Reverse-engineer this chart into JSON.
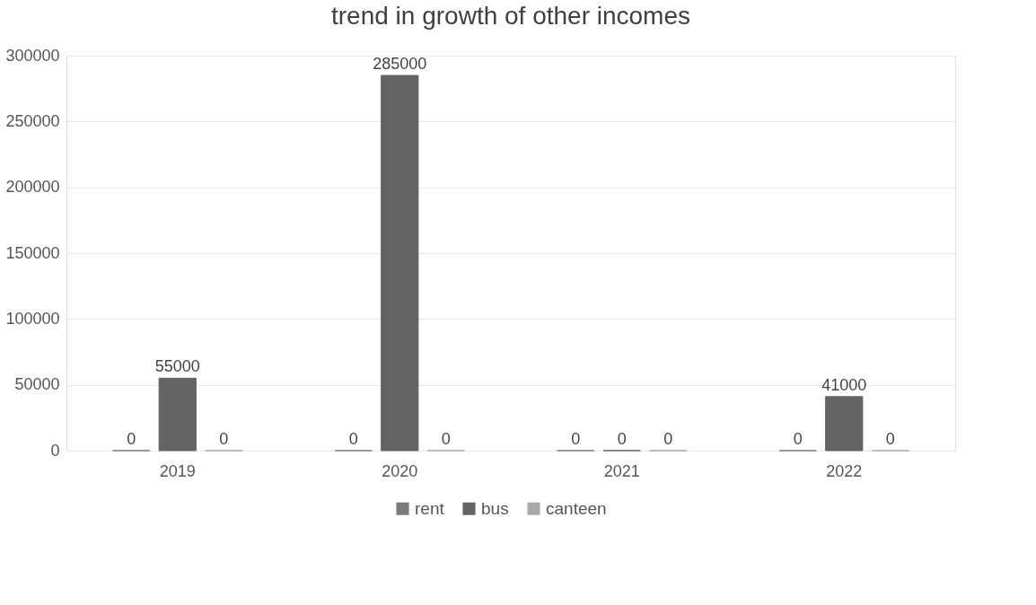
{
  "chart_data": {
    "type": "bar",
    "title": "trend in growth of other incomes",
    "categories": [
      "2019",
      "2020",
      "2021",
      "2022",
      null
    ],
    "series": [
      {
        "name": "rent",
        "color": "#7a7a7c",
        "values": [
          0,
          0,
          0,
          0,
          null
        ]
      },
      {
        "name": "bus",
        "color": "#646466",
        "values": [
          55000,
          285000,
          0,
          41000,
          null
        ]
      },
      {
        "name": "canteen",
        "color": "#a9a9ab",
        "values": [
          0,
          0,
          0,
          0,
          null
        ]
      }
    ],
    "ylim": [
      0,
      300000
    ],
    "yticks": [
      0,
      50000,
      100000,
      150000,
      200000,
      250000,
      300000
    ],
    "grid": "y",
    "legend": "bottom",
    "data_labels": true
  }
}
